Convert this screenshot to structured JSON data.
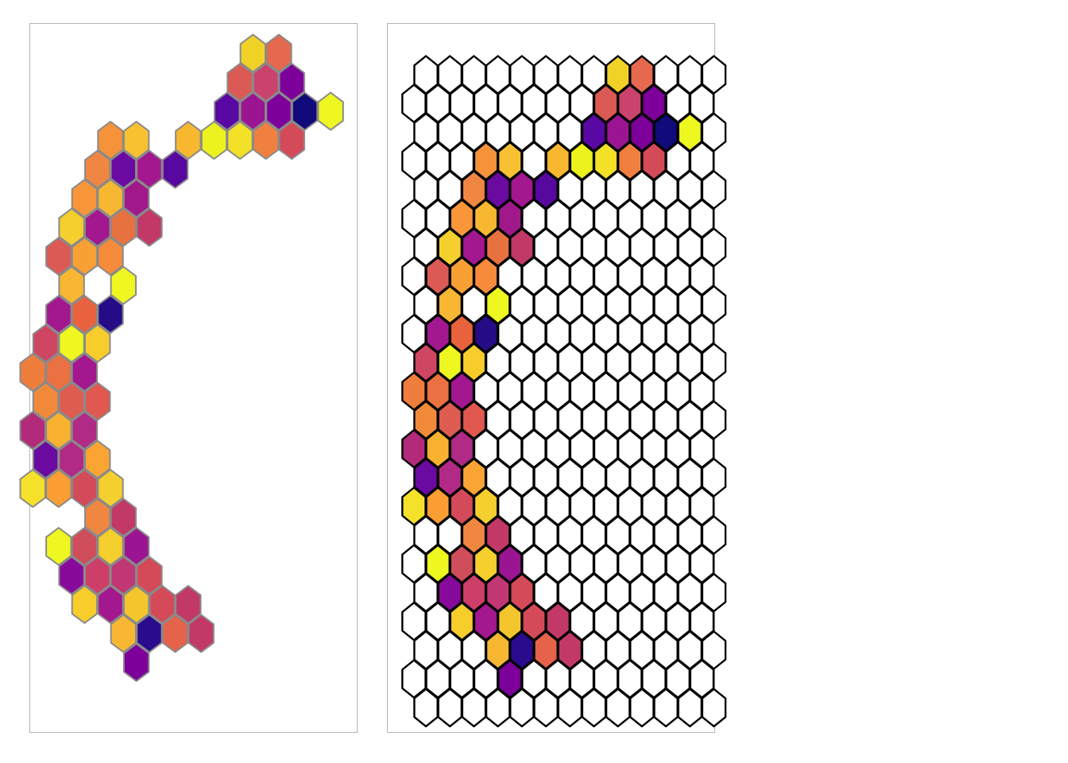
{
  "chart_data": [
    {
      "type": "heatmap",
      "subtype": "hexagonal-grid",
      "title": "",
      "xlabel": "",
      "ylabel": "",
      "grid_columns": 13,
      "grid_rows": 23,
      "x_range": [
        0,
        12
      ],
      "y_range": [
        0,
        22
      ],
      "cells_source": "filled",
      "show_axes": false,
      "legend": "none"
    },
    {
      "type": "heatmap",
      "subtype": "hexagonal-grid",
      "title": "",
      "xlabel": "",
      "ylabel": "",
      "grid_columns": 13,
      "grid_rows": 23,
      "x_range": [
        0,
        12
      ],
      "y_range": [
        0,
        22
      ],
      "show_empty_cells": true,
      "show_axes": false,
      "legend": "none"
    }
  ],
  "palette": [
    "#0d0887",
    "#41049d",
    "#6a00a8",
    "#8f0da4",
    "#b12a90",
    "#cc4778",
    "#e16462",
    "#f2844b",
    "#fca636",
    "#fcce25",
    "#f0f921"
  ],
  "colors": {
    "border_left": "#8a8a8a",
    "border_right": "#000000",
    "empty_cell": "#ffffff",
    "panel_border": "#b3b3b3"
  },
  "filled": [
    {
      "col": 8,
      "row": 0,
      "c": "#f0d227"
    },
    {
      "col": 9,
      "row": 0,
      "c": "#e5694f"
    },
    {
      "col": 8,
      "row": 1,
      "c": "#dc5a55"
    },
    {
      "col": 9,
      "row": 1,
      "c": "#c9436d"
    },
    {
      "col": 10,
      "row": 1,
      "c": "#7c0099"
    },
    {
      "col": 7,
      "row": 2,
      "c": "#5a08a3"
    },
    {
      "col": 8,
      "row": 2,
      "c": "#9b1592"
    },
    {
      "col": 9,
      "row": 2,
      "c": "#7c0099"
    },
    {
      "col": 10,
      "row": 2,
      "c": "#110a7a"
    },
    {
      "col": 11,
      "row": 2,
      "c": "#eef71f"
    },
    {
      "col": 3,
      "row": 3,
      "c": "#f6923a"
    },
    {
      "col": 4,
      "row": 3,
      "c": "#f7c132"
    },
    {
      "col": 6,
      "row": 3,
      "c": "#f7b72e"
    },
    {
      "col": 7,
      "row": 3,
      "c": "#ebf21e"
    },
    {
      "col": 8,
      "row": 3,
      "c": "#f2e127"
    },
    {
      "col": 9,
      "row": 3,
      "c": "#f08040"
    },
    {
      "col": 10,
      "row": 3,
      "c": "#d54a59"
    },
    {
      "col": 2,
      "row": 4,
      "c": "#ef8742"
    },
    {
      "col": 3,
      "row": 4,
      "c": "#6a0aa0"
    },
    {
      "col": 4,
      "row": 4,
      "c": "#a3178f"
    },
    {
      "col": 5,
      "row": 4,
      "c": "#57089e"
    },
    {
      "col": 2,
      "row": 5,
      "c": "#f9963a"
    },
    {
      "col": 3,
      "row": 5,
      "c": "#f7b731"
    },
    {
      "col": 4,
      "row": 5,
      "c": "#a1188a"
    },
    {
      "col": 1,
      "row": 6,
      "c": "#f4cf2e"
    },
    {
      "col": 2,
      "row": 6,
      "c": "#a3178f"
    },
    {
      "col": 3,
      "row": 6,
      "c": "#e8723f"
    },
    {
      "col": 4,
      "row": 6,
      "c": "#c23968"
    },
    {
      "col": 1,
      "row": 7,
      "c": "#dc5a55"
    },
    {
      "col": 2,
      "row": 7,
      "c": "#f9a035"
    },
    {
      "col": 3,
      "row": 7,
      "c": "#f58b3b"
    },
    {
      "col": 1,
      "row": 8,
      "c": "#f8b732"
    },
    {
      "col": 3,
      "row": 8,
      "c": "#eef71f"
    },
    {
      "col": 1,
      "row": 9,
      "c": "#a3178f"
    },
    {
      "col": 2,
      "row": 9,
      "c": "#e8623e"
    },
    {
      "col": 3,
      "row": 9,
      "c": "#250c86"
    },
    {
      "col": 0,
      "row": 10,
      "c": "#cf4663"
    },
    {
      "col": 1,
      "row": 10,
      "c": "#eef71f"
    },
    {
      "col": 2,
      "row": 10,
      "c": "#f6cd2b"
    },
    {
      "col": 0,
      "row": 11,
      "c": "#ef7d3c"
    },
    {
      "col": 1,
      "row": 11,
      "c": "#e97142"
    },
    {
      "col": 2,
      "row": 11,
      "c": "#a3178f"
    },
    {
      "col": 0,
      "row": 12,
      "c": "#f08a3a"
    },
    {
      "col": 1,
      "row": 12,
      "c": "#de5c50"
    },
    {
      "col": 2,
      "row": 12,
      "c": "#e0584f"
    },
    {
      "col": 0,
      "row": 13,
      "c": "#b32a7a"
    },
    {
      "col": 1,
      "row": 13,
      "c": "#f8b22f"
    },
    {
      "col": 2,
      "row": 13,
      "c": "#b02a86"
    },
    {
      "col": 0,
      "row": 14,
      "c": "#6a0aa0"
    },
    {
      "col": 1,
      "row": 14,
      "c": "#b02a86"
    },
    {
      "col": 2,
      "row": 14,
      "c": "#f9a433"
    },
    {
      "col": 0,
      "row": 15,
      "c": "#f6e12a"
    },
    {
      "col": 1,
      "row": 15,
      "c": "#fa9d32"
    },
    {
      "col": 2,
      "row": 15,
      "c": "#d34a5b"
    },
    {
      "col": 3,
      "row": 15,
      "c": "#f4cf2e"
    },
    {
      "col": 2,
      "row": 16,
      "c": "#ef8740"
    },
    {
      "col": 3,
      "row": 16,
      "c": "#c23968"
    },
    {
      "col": 1,
      "row": 17,
      "c": "#eef71f"
    },
    {
      "col": 2,
      "row": 17,
      "c": "#d04d5c"
    },
    {
      "col": 3,
      "row": 17,
      "c": "#f4cf2e"
    },
    {
      "col": 4,
      "row": 17,
      "c": "#9b1592"
    },
    {
      "col": 1,
      "row": 18,
      "c": "#880a9a"
    },
    {
      "col": 2,
      "row": 18,
      "c": "#cd3f68"
    },
    {
      "col": 3,
      "row": 18,
      "c": "#c13774"
    },
    {
      "col": 4,
      "row": 18,
      "c": "#d54a59"
    },
    {
      "col": 2,
      "row": 19,
      "c": "#f6cd2b"
    },
    {
      "col": 3,
      "row": 19,
      "c": "#a3178f"
    },
    {
      "col": 4,
      "row": 19,
      "c": "#f5c52d"
    },
    {
      "col": 5,
      "row": 19,
      "c": "#d54a59"
    },
    {
      "col": 6,
      "row": 19,
      "c": "#c23968"
    },
    {
      "col": 3,
      "row": 20,
      "c": "#f8b732"
    },
    {
      "col": 4,
      "row": 20,
      "c": "#2a0b8e"
    },
    {
      "col": 5,
      "row": 20,
      "c": "#e4634a"
    },
    {
      "col": 6,
      "row": 20,
      "c": "#c23968"
    },
    {
      "col": 4,
      "row": 21,
      "c": "#7c0099"
    }
  ]
}
